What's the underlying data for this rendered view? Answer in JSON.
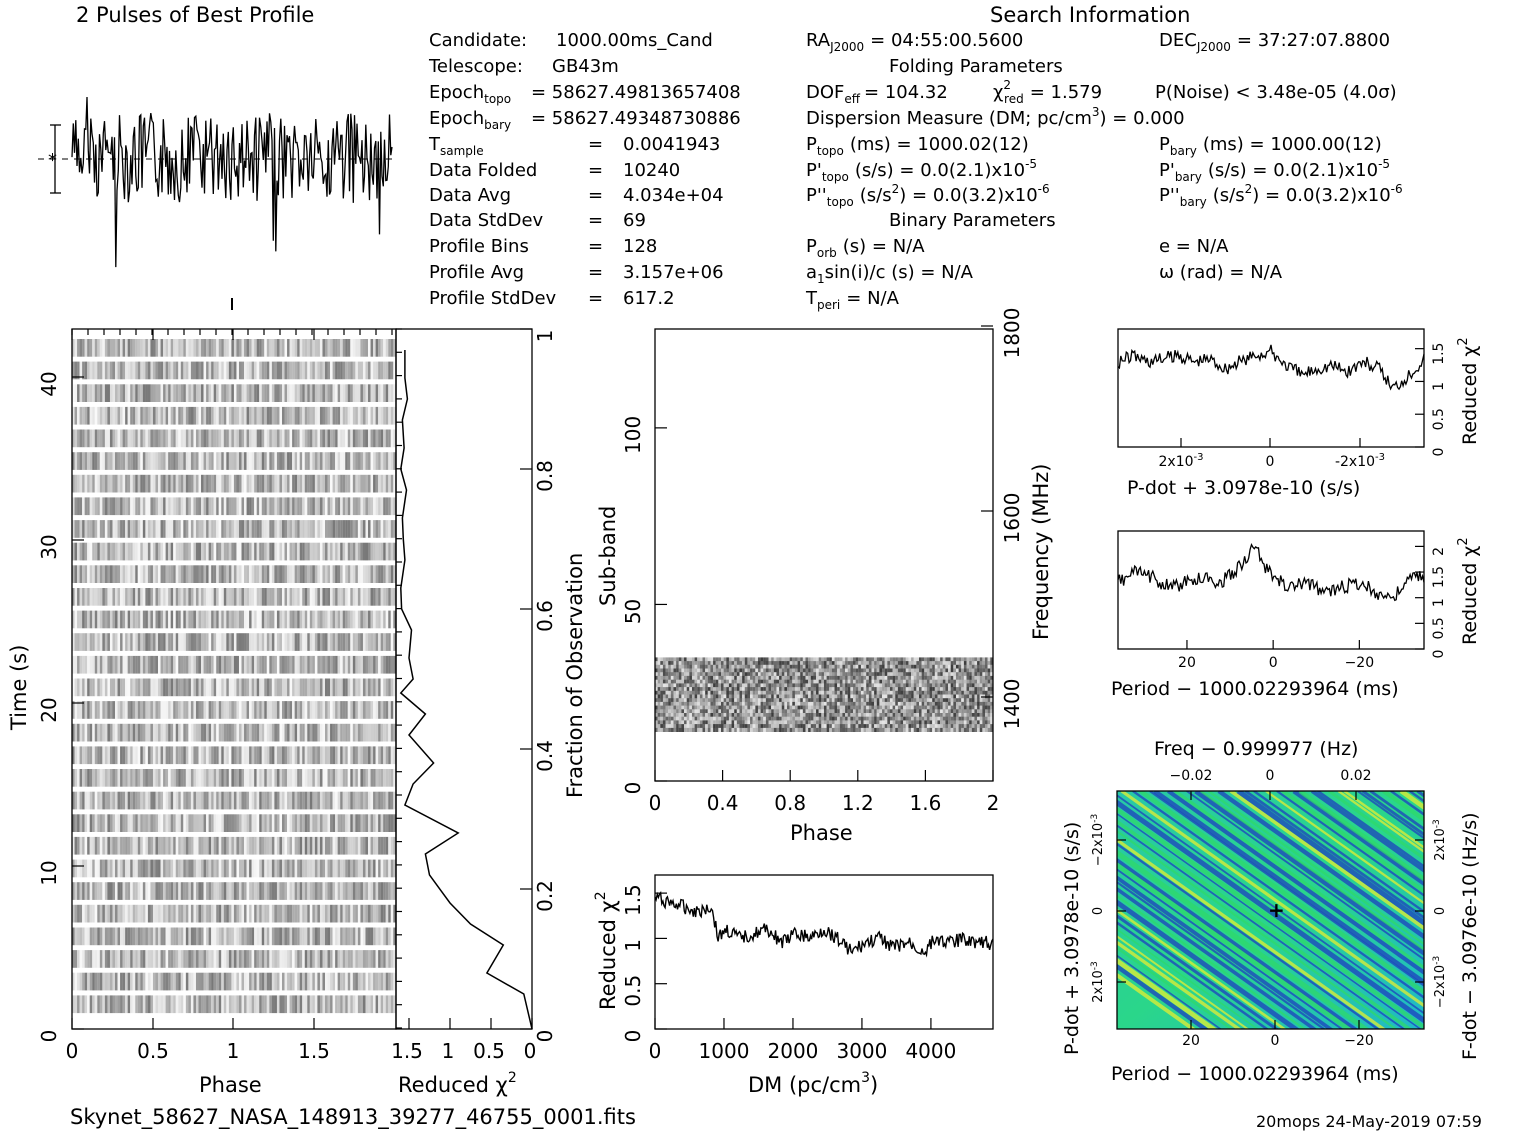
{
  "header": {
    "profile_title": "2 Pulses of Best Profile",
    "search_title": "Search Information",
    "file_name": "Skynet_58627_NASA_148913_39277_46755_0001.fits",
    "footer_stamp": "20mops 24-May-2019 07:59"
  },
  "info_left": [
    {
      "label": "Candidate:",
      "value": "1000.00ms_Cand"
    },
    {
      "label": "Telescope:",
      "value": "GB43m"
    },
    {
      "label": "Epoch",
      "sub": "topo",
      "value": "= 58627.49813657408"
    },
    {
      "label": "Epoch",
      "sub": "bary",
      "value": "= 58627.49348730886"
    },
    {
      "label": "T",
      "sub": "sample",
      "value": "0.0041943"
    },
    {
      "label": "Data Folded",
      "value": "10240"
    },
    {
      "label": "Data Avg",
      "value": "4.034e+04"
    },
    {
      "label": "Data StdDev",
      "value": "69"
    },
    {
      "label": "Profile Bins",
      "value": "128"
    },
    {
      "label": "Profile Avg",
      "value": "3.157e+06"
    },
    {
      "label": "Profile StdDev",
      "value": "617.2"
    }
  ],
  "info_mid": {
    "ra": "RA",
    "ra_sub": "J2000",
    "ra_value": "= 04:55:00.5600",
    "dec": "DEC",
    "dec_sub": "J2000",
    "dec_value": "= 37:27:07.8800",
    "folding_title": "Folding Parameters",
    "dof": "DOF",
    "dof_sub": "eff",
    "dof_value": "= 104.32",
    "chi": "χ",
    "chi_sub": "red",
    "chi_value": "= 1.579",
    "pnoise": "P(Noise) < 3.48e-05  (4.0σ)",
    "dm_line": "Dispersion Measure (DM; pc/cm",
    "dm_value": ") = 0.000",
    "ptopo": "P",
    "ptopo_sub": "topo",
    "ptopo_value": "(ms) =  1000.02(12)",
    "pbary": "P",
    "pbary_sub": "bary",
    "pbary_value": "(ms) =  1000.00(12)",
    "pdtopo": "P'",
    "pdtopo_sub": "topo",
    "pdtopo_value": "(s/s) = 0.0(2.1)x10",
    "pdbary": "P'",
    "pdbary_sub": "bary",
    "pdbary_value": "(s/s) = 0.0(2.1)x10",
    "pdexp": "-5",
    "pddtopo": "P''",
    "pddtopo_sub": "topo",
    "pddtopo_value": "(s/s",
    "pddbary": "P''",
    "pddbary_sub": "bary",
    "pddbary_value": "(s/s",
    "pdd_tail": ") = 0.0(3.2)x10",
    "pddexp": "-6",
    "binary_title": "Binary Parameters",
    "porb": "P",
    "porb_sub": "orb",
    "porb_value": "(s) = N/A",
    "ecc": "e = N/A",
    "a1": "a",
    "a1_sub": "1",
    "a1_value": "sin(i)/c (s) = N/A",
    "omega": "ω (rad) = N/A",
    "tperi": "T",
    "tperi_sub": "peri",
    "tperi_value": "= N/A"
  },
  "colors": {
    "ink": "#000000",
    "map_low": "#2233bb",
    "map_mid": "#22dd66",
    "map_high": "#eeee22"
  },
  "chart_data": [
    {
      "type": "line",
      "name_hint": "profile",
      "title": "2 Pulses of Best Profile",
      "xlim": [
        0,
        2
      ]
    },
    {
      "type": "heatmap",
      "name_hint": "time-phase",
      "xlabel": "Phase",
      "ylabel": "Time (s)",
      "xticks": [
        "0",
        "0.5",
        "1",
        "1.5"
      ],
      "yticks": [
        "0",
        "10",
        "20",
        "30",
        "40"
      ],
      "xlim": [
        0,
        2
      ],
      "ylim": [
        0,
        43
      ],
      "rows": 30
    },
    {
      "type": "line",
      "name_hint": "time-chi",
      "xlabel": "Reduced χ",
      "xlabel_exp": "2",
      "ylabel": "Fraction of Observation",
      "xticks": [
        "1.5",
        "1",
        "0.5",
        "0"
      ],
      "yticks": [
        "0",
        "0.2",
        "0.4",
        "0.6",
        "0.8",
        "1"
      ],
      "x": [
        1.55,
        1.55,
        1.52,
        1.58,
        1.56,
        1.6,
        1.53,
        1.58,
        1.57,
        1.55,
        1.6,
        1.59,
        1.47,
        1.5,
        1.45,
        1.6,
        1.3,
        1.5,
        1.2,
        1.45,
        1.55,
        0.9,
        1.3,
        1.25,
        1.0,
        0.75,
        0.35,
        0.55,
        0.1,
        0.0
      ],
      "y": [
        0.97,
        0.93,
        0.9,
        0.87,
        0.83,
        0.8,
        0.77,
        0.73,
        0.7,
        0.67,
        0.63,
        0.6,
        0.57,
        0.53,
        0.5,
        0.48,
        0.45,
        0.42,
        0.38,
        0.35,
        0.32,
        0.28,
        0.25,
        0.22,
        0.18,
        0.15,
        0.12,
        0.08,
        0.05,
        0.0
      ]
    },
    {
      "type": "heatmap",
      "name_hint": "subband-phase",
      "xlabel": "Phase",
      "ylabel": "Sub-band",
      "y2label": "Frequency (MHz)",
      "xticks": [
        "0",
        "0.4",
        "0.8",
        "1.2",
        "1.6",
        "2"
      ],
      "yticks": [
        "0",
        "50",
        "100"
      ],
      "y2ticks": [
        "1400",
        "1600",
        "1800"
      ],
      "xlim": [
        0,
        2
      ],
      "ylim": [
        0,
        128
      ],
      "filled_band": [
        14,
        35
      ]
    },
    {
      "type": "line",
      "name_hint": "dm-chi",
      "xlabel": "DM (pc/cm",
      "xlabel_exp": "3",
      "xlabel_tail": ")",
      "ylabel": "Reduced χ",
      "ylabel_exp": "2",
      "xticks": [
        "0",
        "1000",
        "2000",
        "3000",
        "4000"
      ],
      "yticks": [
        "0",
        "0.5",
        "1",
        "1.5"
      ],
      "xlim": [
        0,
        4900
      ],
      "ylim": [
        0,
        1.7
      ],
      "x": [
        0,
        200,
        400,
        600,
        800,
        900,
        1000,
        1200,
        1400,
        1600,
        1800,
        2000,
        2200,
        2400,
        2600,
        2800,
        3000,
        3200,
        3400,
        3600,
        3800,
        4000,
        4200,
        4400,
        4600,
        4800
      ],
      "y": [
        1.45,
        1.4,
        1.35,
        1.3,
        1.35,
        1.0,
        1.1,
        1.0,
        1.05,
        1.1,
        0.95,
        1.05,
        1.0,
        1.1,
        1.0,
        0.85,
        0.95,
        1.0,
        0.9,
        0.95,
        0.85,
        1.0,
        0.95,
        1.0,
        0.95,
        0.95
      ]
    },
    {
      "type": "line",
      "name_hint": "pdot-chi",
      "xlabel": "P-dot + 3.0978e-10 (s/s)",
      "ylabel": "Reduced χ",
      "ylabel_exp": "2",
      "xticks": [
        "2x10",
        "0",
        "-2x10"
      ],
      "xtick_exp": "-3",
      "yticks": [
        "0",
        "0.5",
        "1",
        "1.5"
      ],
      "ylim": [
        0,
        1.8
      ],
      "x": [
        -1,
        -0.9,
        -0.8,
        -0.7,
        -0.6,
        -0.5,
        -0.4,
        -0.3,
        -0.2,
        -0.1,
        0,
        0.1,
        0.2,
        0.3,
        0.4,
        0.5,
        0.6,
        0.7,
        0.8,
        0.9,
        1
      ],
      "y": [
        1.3,
        1.4,
        1.3,
        1.35,
        1.4,
        1.3,
        1.35,
        1.2,
        1.3,
        1.4,
        1.45,
        1.25,
        1.1,
        1.2,
        1.25,
        1.15,
        1.3,
        1.2,
        0.9,
        1.1,
        1.35
      ]
    },
    {
      "type": "line",
      "name_hint": "period-chi",
      "xlabel": "Period − 1000.02293964 (ms)",
      "ylabel": "Reduced χ",
      "ylabel_exp": "2",
      "xticks": [
        "20",
        "0",
        "−20"
      ],
      "yticks": [
        "0",
        "0.5",
        "1",
        "1.5",
        "2"
      ],
      "xlim": [
        36,
        -35
      ],
      "ylim": [
        0,
        2.3
      ],
      "x": [
        36,
        32,
        28,
        24,
        20,
        16,
        12,
        8,
        4,
        2,
        0,
        -4,
        -8,
        -12,
        -16,
        -20,
        -24,
        -28,
        -32,
        -35
      ],
      "y": [
        1.3,
        1.5,
        1.4,
        1.2,
        1.3,
        1.4,
        1.3,
        1.6,
        2.0,
        1.6,
        1.4,
        1.2,
        1.3,
        1.1,
        1.2,
        1.3,
        1.1,
        1.0,
        1.4,
        1.4
      ]
    },
    {
      "type": "heatmap",
      "name_hint": "pdot-period",
      "title": "Freq − 0.999977 (Hz)",
      "xlabel": "Period − 1000.02293964 (ms)",
      "ylabel": "P-dot + 3.0978e-10 (s/s)",
      "y2label": "F-dot − 3.0976e-10 (Hz/s)",
      "xticks": [
        "20",
        "0",
        "−20"
      ],
      "x2ticks": [
        "−0.02",
        "0",
        "0.02"
      ],
      "yticks_left": [
        "−2x10",
        "0",
        "2x10"
      ],
      "yticks_right": [
        "2x10",
        "0",
        "−2x10"
      ],
      "tick_exp": "-3",
      "xlim": [
        36,
        -35
      ]
    }
  ]
}
